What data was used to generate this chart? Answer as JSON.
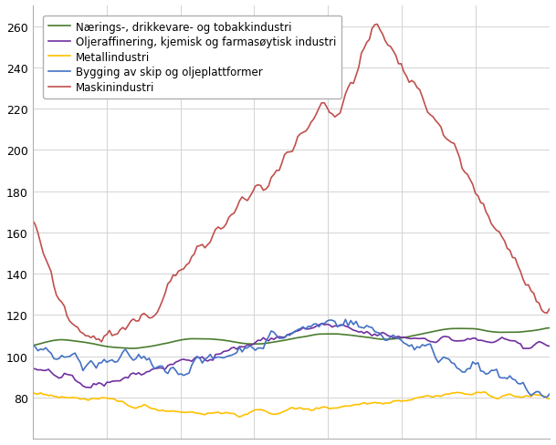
{
  "title": "",
  "legend_entries": [
    "Nærings-, drikkevare- og tobakkindustri",
    "Oljeraffinering, kjemisk og farmасøytisk industri",
    "Metallindustri",
    "Bygging av skip og oljeplattformer",
    "Maskinindustri"
  ],
  "legend_entries_fixed": [
    "Nærings-, drikkevare- og tobakkindustri",
    "Oljeraffinering, kjemisk og farmasøytisk industri",
    "Metallindustri",
    "Bygging av skip og oljeplattformer",
    "Maskinindustri"
  ],
  "colors": [
    "#4a7c2f",
    "#7030a0",
    "#ffc000",
    "#4472c4",
    "#c0504d"
  ],
  "n_points": 196,
  "background_color": "#ffffff",
  "grid_color": "#d0d0d0",
  "spine_color": "#808080"
}
